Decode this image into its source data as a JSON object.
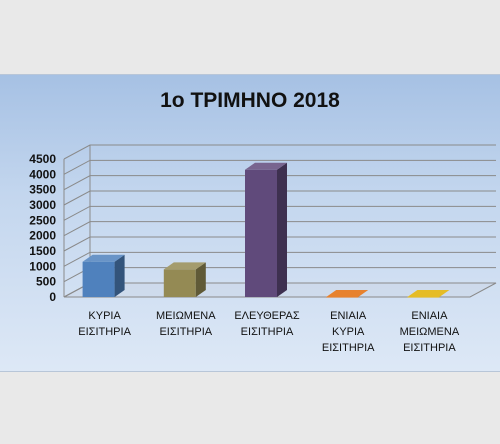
{
  "chart_data": {
    "type": "bar",
    "title": "1ο ΤΡΙΜΗΝΟ 2018",
    "categories": [
      [
        "ΚΥΡΙΑ",
        "ΕΙΣΙΤΗΡΙΑ"
      ],
      [
        "ΜΕΙΩΜΕΝΑ",
        "ΕΙΣΙΤΗΡΙΑ"
      ],
      [
        "ΕΛΕΥΘΕΡΑΣ",
        "ΕΙΣΙΤΗΡΙΑ"
      ],
      [
        "ΕΝΙΑΙΑ",
        "ΚΥΡΙΑ",
        "ΕΙΣΙΤΗΡΙΑ"
      ],
      [
        "ΕΝΙΑΙΑ",
        "ΜΕΙΩΜΕΝΑ",
        "ΕΙΣΙΤΗΡΙΑ"
      ]
    ],
    "values": [
      1150,
      900,
      4150,
      0,
      0
    ],
    "colors": [
      "#4f81bd",
      "#948a54",
      "#604a7b",
      "#e36c09",
      "#e0b000"
    ],
    "ylim": [
      0,
      4500
    ],
    "yticks": [
      0,
      500,
      1000,
      1500,
      2000,
      2500,
      3000,
      3500,
      4000,
      4500
    ],
    "grid": true,
    "style": "3d"
  }
}
